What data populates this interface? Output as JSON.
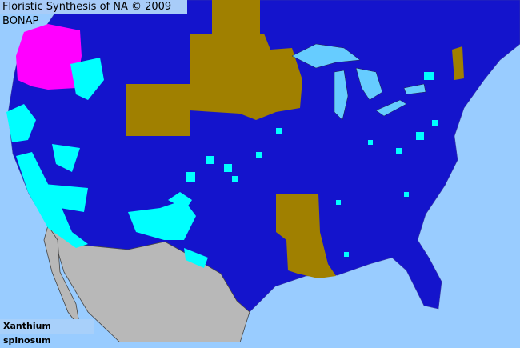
{
  "header": {
    "title": "Floristic Synthesis of NA © 2009 BONAP"
  },
  "map": {
    "species": "Xanthium spinosum",
    "colors": {
      "ocean": "#99ccff",
      "present_county": "#0000cc",
      "state_present": "#1010cc",
      "adventive": "#00ffff",
      "absent_state": "#a08000",
      "noxious": "#ff00ff",
      "mexico": "#b8b8b8",
      "lakes": "#66ccff"
    }
  }
}
